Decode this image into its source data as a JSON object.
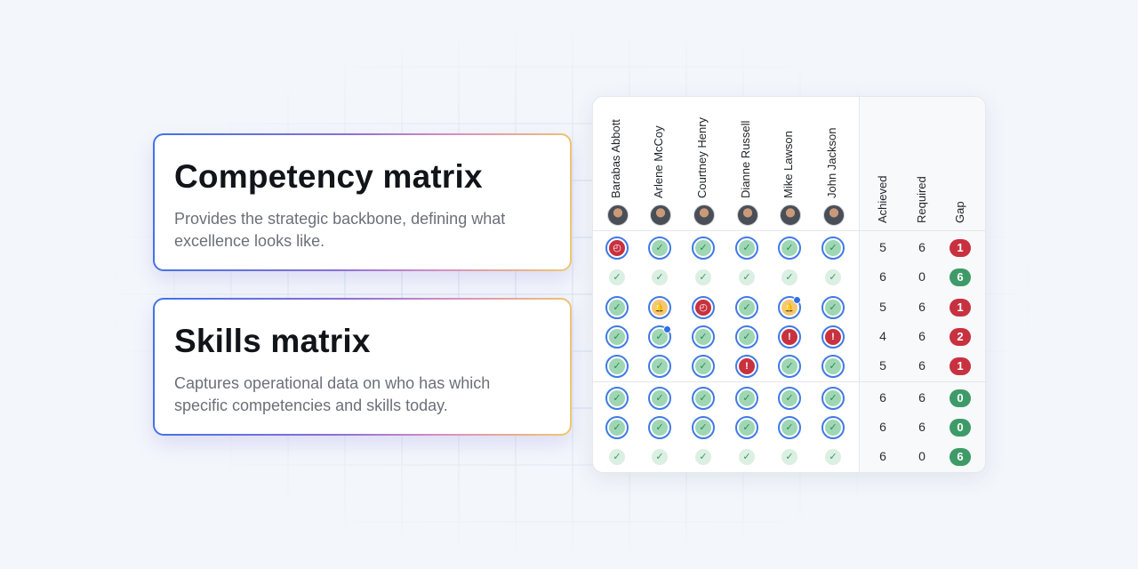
{
  "cards": [
    {
      "title": "Competency matrix",
      "description": "Provides the strategic backbone, defining what excellence looks like."
    },
    {
      "title": "Skills matrix",
      "description": "Captures operational data on who has which specific competencies and skills today."
    }
  ],
  "matrix": {
    "people": [
      "Barabas Abbott",
      "Arlene McCoy",
      "Courtney Henry",
      "Dianne Russell",
      "Mike Lawson",
      "John Jackson"
    ],
    "summary_headers": [
      "Achieved",
      "Required",
      "Gap"
    ],
    "rows": [
      {
        "cells": [
          "time",
          "ok",
          "ok",
          "ok",
          "ok",
          "ok"
        ],
        "achieved": "5",
        "required": "6",
        "gap": "1",
        "gap_status": "negative"
      },
      {
        "cells": [
          "light",
          "light",
          "light",
          "light",
          "light",
          "light"
        ],
        "achieved": "6",
        "required": "0",
        "gap": "6",
        "gap_status": "positive"
      },
      {
        "cells": [
          "ok",
          "bell",
          "time",
          "ok",
          "bell-dot",
          "ok"
        ],
        "achieved": "5",
        "required": "6",
        "gap": "1",
        "gap_status": "negative"
      },
      {
        "cells": [
          "ok",
          "ok-dot",
          "ok",
          "ok",
          "warn",
          "warn"
        ],
        "achieved": "4",
        "required": "6",
        "gap": "2",
        "gap_status": "negative"
      },
      {
        "cells": [
          "ok",
          "ok",
          "ok",
          "warn",
          "ok",
          "ok"
        ],
        "achieved": "5",
        "required": "6",
        "gap": "1",
        "gap_status": "negative"
      },
      {
        "cells": [
          "ok",
          "ok",
          "ok",
          "ok",
          "ok",
          "ok"
        ],
        "achieved": "6",
        "required": "6",
        "gap": "0",
        "gap_status": "positive"
      },
      {
        "cells": [
          "ok",
          "ok",
          "ok",
          "ok",
          "ok",
          "ok"
        ],
        "achieved": "6",
        "required": "6",
        "gap": "0",
        "gap_status": "positive"
      },
      {
        "cells": [
          "light",
          "light",
          "light",
          "light",
          "light",
          "light"
        ],
        "achieved": "6",
        "required": "0",
        "gap": "6",
        "gap_status": "positive"
      }
    ],
    "icons": {
      "ok": "check-icon",
      "light": "check-icon",
      "warn": "exclamation-icon",
      "time": "clock-icon",
      "bell": "bell-icon"
    },
    "colors": {
      "accent": "#3f7ae6",
      "negative": "#c8313f",
      "positive": "#3e9b68",
      "ok_fill": "#9fd6b4",
      "bell_fill": "#f6c772"
    }
  }
}
